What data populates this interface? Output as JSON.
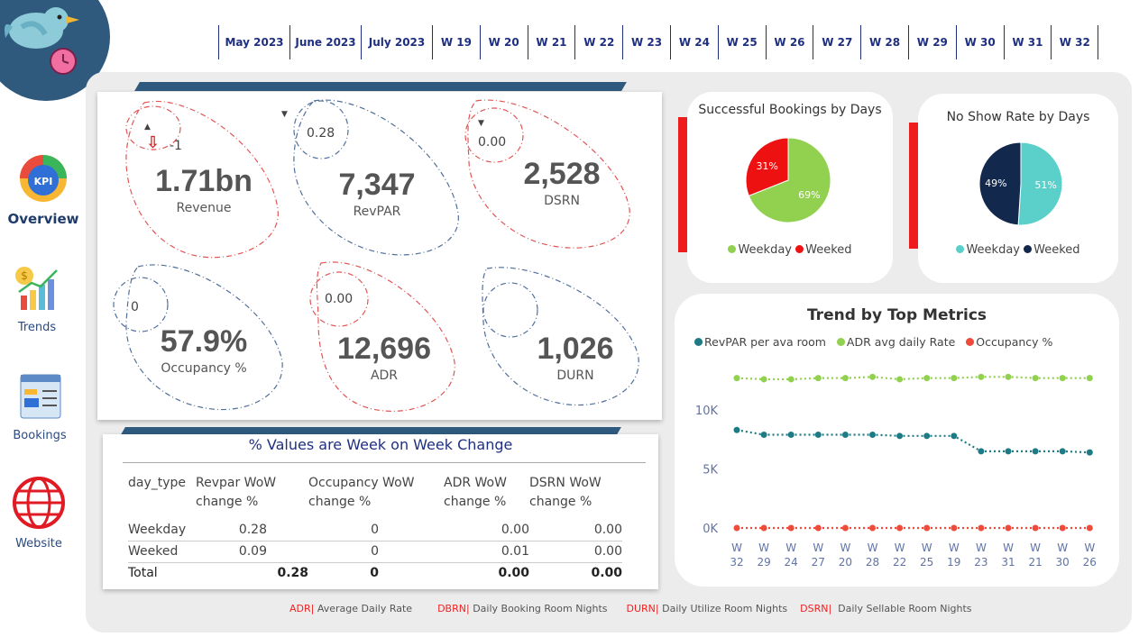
{
  "slicer": [
    "May 2023",
    "June 2023",
    "July 2023",
    "W 19",
    "W 20",
    "W 21",
    "W 22",
    "W 23",
    "W 24",
    "W 25",
    "W 26",
    "W 27",
    "W 28",
    "W 29",
    "W 30",
    "W 31",
    "W 32"
  ],
  "nav": {
    "overview": "Overview",
    "trends": "Trends",
    "bookings": "Bookings",
    "website": "Website",
    "kpi_badge": "KPI"
  },
  "kpis": {
    "revenue": {
      "value": "1.71bn",
      "label": "Revenue",
      "delta": "-1"
    },
    "revpar": {
      "value": "7,347",
      "label": "RevPAR",
      "delta": "0.28"
    },
    "dsrn": {
      "value": "2,528",
      "label": "DSRN",
      "delta": "0.00"
    },
    "occupancy": {
      "value": "57.9%",
      "label": "Occupancy %",
      "delta": "0"
    },
    "adr": {
      "value": "12,696",
      "label": "ADR",
      "delta": "0.00"
    },
    "durn": {
      "value": "1,026",
      "label": "DURN",
      "delta": ""
    }
  },
  "wow_table": {
    "title": "% Values are Week on Week Change",
    "headers": [
      "day_type",
      "Revpar WoW change %",
      "Occupancy WoW change %",
      "ADR WoW change %",
      "DSRN WoW change %"
    ],
    "rows": [
      [
        "Weekday",
        "0.28",
        "0",
        "0.00",
        "0.00"
      ],
      [
        "Weeked",
        "0.09",
        "0",
        "0.01",
        "0.00"
      ]
    ],
    "total": [
      "Total",
      "0.28",
      "0",
      "0.00",
      "0.00"
    ]
  },
  "bookings_pie": {
    "title": "Successful Bookings by Days",
    "legend": [
      "Weekday",
      "Weeked"
    ],
    "colors": [
      "#92d050",
      "#ee1111"
    ],
    "chart_data": {
      "type": "pie",
      "labels": [
        "Weekday",
        "Weeked"
      ],
      "values": [
        69,
        31
      ]
    },
    "labels_text": [
      "69%",
      "31%"
    ]
  },
  "noshow_pie": {
    "title": "No Show Rate by Days",
    "legend": [
      "Weekday",
      "Weeked"
    ],
    "colors": [
      "#5bcfc9",
      "#12284d"
    ],
    "chart_data": {
      "type": "pie",
      "labels": [
        "Weekday",
        "Weeked"
      ],
      "values": [
        51,
        49
      ]
    },
    "labels_text": [
      "51%",
      "49%"
    ]
  },
  "trend": {
    "title": "Trend by Top Metrics",
    "legend": [
      "RevPAR per ava room",
      "ADR avg daily Rate",
      "Occupancy %"
    ],
    "colors": [
      "#1e7b85",
      "#92d050",
      "#ee4b3b"
    ],
    "chart_data": {
      "type": "line",
      "x": [
        "W 32",
        "W 29",
        "W 24",
        "W 27",
        "W 20",
        "W 28",
        "W 22",
        "W 25",
        "W 19",
        "W 23",
        "W 31",
        "W 21",
        "W 30",
        "W 26"
      ],
      "yticks": [
        "10K",
        "5K",
        "0K"
      ],
      "ylim": [
        0,
        14000
      ],
      "series": [
        {
          "name": "RevPAR per ava room",
          "values": [
            8300,
            7900,
            7900,
            7900,
            7900,
            7900,
            7800,
            7800,
            7800,
            6500,
            6500,
            6500,
            6500,
            6400
          ]
        },
        {
          "name": "ADR avg daily Rate",
          "values": [
            12700,
            12600,
            12600,
            12700,
            12700,
            12800,
            12600,
            12700,
            12700,
            12800,
            12800,
            12700,
            12700,
            12700
          ]
        },
        {
          "name": "Occupancy %",
          "values": [
            58,
            58,
            58,
            58,
            58,
            58,
            58,
            58,
            58,
            58,
            58,
            58,
            58,
            58
          ]
        }
      ]
    }
  },
  "footer": [
    {
      "key": "ADR|",
      "text": "Average Daily Rate"
    },
    {
      "key": "DBRN|",
      "text": "Daily Booking Room Nights"
    },
    {
      "key": "DURN|",
      "text": "Daily Utilize Room Nights"
    },
    {
      "key": "DSRN|",
      "text": "Daily Sellable Room Nights"
    }
  ]
}
